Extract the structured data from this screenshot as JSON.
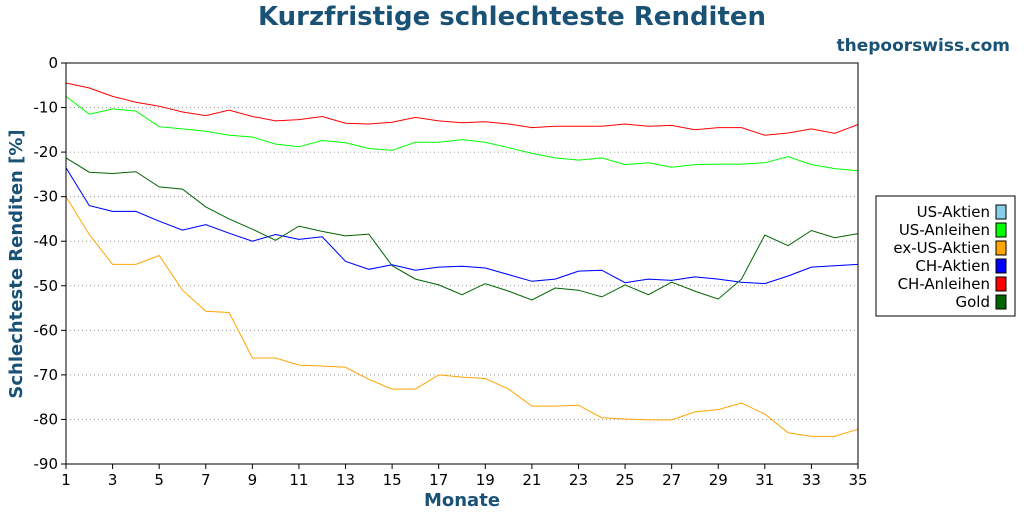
{
  "chart_data": {
    "type": "line",
    "title": "Kurzfristige schlechteste Renditen",
    "watermark": "thepoorswiss.com",
    "xlabel": "Monate",
    "ylabel": "Schlechteste Renditen [%]",
    "xlim": [
      1,
      35
    ],
    "ylim": [
      -90,
      0
    ],
    "xticks": [
      1,
      3,
      5,
      7,
      9,
      11,
      13,
      15,
      17,
      19,
      21,
      23,
      25,
      27,
      29,
      31,
      33,
      35
    ],
    "yticks": [
      0,
      -10,
      -20,
      -30,
      -40,
      -50,
      -60,
      -70,
      -80,
      -90
    ],
    "grid": "horizontal dotted",
    "legend_position": "right",
    "x": [
      1,
      2,
      3,
      4,
      5,
      6,
      7,
      8,
      9,
      10,
      11,
      12,
      13,
      14,
      15,
      16,
      17,
      18,
      19,
      20,
      21,
      22,
      23,
      24,
      25,
      26,
      27,
      28,
      29,
      30,
      31,
      32,
      33,
      34,
      35
    ],
    "series": [
      {
        "name": "US-Aktien",
        "color": "#87ceeb",
        "values": [
          -23.5,
          -32,
          -33.3,
          -33.3,
          -35.5,
          -37.5,
          -36.3,
          -38.2,
          -40,
          -38.5,
          -39.6,
          -39,
          -44.5,
          -46.3,
          -45.3,
          -46.5,
          -45.8,
          -45.6,
          -46,
          -47.5,
          -49,
          -48.5,
          -46.7,
          -46.5,
          -49.3,
          -48.5,
          -48.8,
          -48,
          -48.5,
          -49.2,
          -49.5,
          -47.8,
          -45.8,
          -45.5,
          -45.2
        ]
      },
      {
        "name": "US-Anleihen",
        "color": "#00ff00",
        "values": [
          -7.5,
          -11.5,
          -10.3,
          -10.8,
          -14.3,
          -14.8,
          -15.3,
          -16.2,
          -16.6,
          -18.2,
          -18.8,
          -17.4,
          -17.9,
          -19.2,
          -19.6,
          -17.8,
          -17.8,
          -17.2,
          -17.8,
          -19,
          -20.3,
          -21.3,
          -21.8,
          -21.3,
          -22.8,
          -22.4,
          -23.4,
          -22.8,
          -22.7,
          -22.7,
          -22.4,
          -21,
          -22.8,
          -23.7,
          -24.2
        ]
      },
      {
        "name": "ex-US-Aktien",
        "color": "#ffa500",
        "values": [
          -30,
          -38.5,
          -45.2,
          -45.2,
          -43.2,
          -51,
          -55.7,
          -56,
          -66.2,
          -66.2,
          -67.8,
          -68,
          -68.3,
          -71,
          -73.2,
          -73.2,
          -70,
          -70.5,
          -70.8,
          -73.2,
          -77,
          -77,
          -76.8,
          -79.6,
          -79.9,
          -80.1,
          -80.1,
          -78.3,
          -77.8,
          -76.3,
          -78.8,
          -83,
          -83.8,
          -83.8,
          -82.2
        ]
      },
      {
        "name": "CH-Aktien",
        "color": "#0000ff",
        "values": [
          -23.5,
          -32,
          -33.3,
          -33.3,
          -35.5,
          -37.5,
          -36.3,
          -38.2,
          -40,
          -38.5,
          -39.6,
          -39,
          -44.5,
          -46.3,
          -45.3,
          -46.5,
          -45.8,
          -45.6,
          -46,
          -47.5,
          -49,
          -48.5,
          -46.7,
          -46.5,
          -49.3,
          -48.5,
          -48.8,
          -48,
          -48.5,
          -49.2,
          -49.5,
          -47.8,
          -45.8,
          -45.5,
          -45.2
        ]
      },
      {
        "name": "CH-Anleihen",
        "color": "#ff0000",
        "values": [
          -4.5,
          -5.6,
          -7.5,
          -8.8,
          -9.7,
          -11,
          -11.8,
          -10.6,
          -12,
          -13,
          -12.7,
          -12,
          -13.5,
          -13.7,
          -13.3,
          -12.2,
          -13,
          -13.4,
          -13.2,
          -13.7,
          -14.5,
          -14.2,
          -14.2,
          -14.2,
          -13.7,
          -14.2,
          -14,
          -15,
          -14.5,
          -14.5,
          -16.2,
          -15.7,
          -14.8,
          -15.8,
          -13.8
        ]
      },
      {
        "name": "Gold",
        "color": "#006400",
        "values": [
          -21.3,
          -24.5,
          -24.8,
          -24.4,
          -27.8,
          -28.3,
          -32.3,
          -35,
          -37.3,
          -39.8,
          -36.6,
          -37.8,
          -38.8,
          -38.4,
          -45.5,
          -48.5,
          -49.8,
          -52,
          -49.5,
          -51.2,
          -53.2,
          -50.5,
          -51,
          -52.5,
          -49.8,
          -52,
          -49.2,
          -51.2,
          -53,
          -48.5,
          -38.6,
          -41,
          -37.6,
          -39.2,
          -38.3
        ]
      }
    ]
  }
}
